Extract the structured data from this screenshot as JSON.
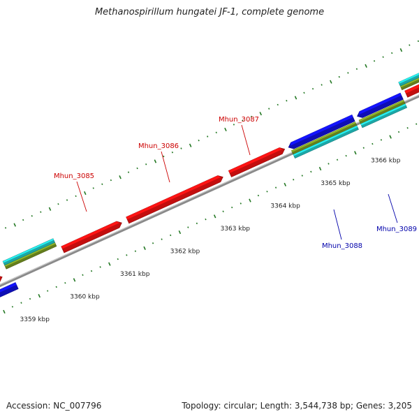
{
  "title": "Methanospirillum hungatei JF-1, complete genome",
  "footer": {
    "accession": "Accession: NC_007796",
    "summary": "Topology: circular; Length: 3,544,738 bp; Genes: 3,205"
  },
  "colors": {
    "backbone": "#8a8a8a",
    "forward_gene": "#ee1111",
    "reverse_gene": "#1111dd",
    "cyan_track": "#22cccc",
    "olive_track": "#7a9a22",
    "tick": "#227722",
    "forward_label": "#cc0000",
    "reverse_label": "#0000aa",
    "text": "#222222"
  },
  "scale": {
    "unit": "kbp",
    "labels": [
      "3359 kbp",
      "3360 kbp",
      "3361 kbp",
      "3362 kbp",
      "3363 kbp",
      "3364 kbp",
      "3365 kbp",
      "3366 kbp"
    ]
  },
  "genes": [
    {
      "label": "Mhun_3085",
      "strand": "forward"
    },
    {
      "label": "Mhun_3086",
      "strand": "forward"
    },
    {
      "label": "Mhun_3087",
      "strand": "forward"
    },
    {
      "label": "Mhun_3088",
      "strand": "reverse"
    },
    {
      "label": "Mhun_3089",
      "strand": "reverse"
    }
  ]
}
